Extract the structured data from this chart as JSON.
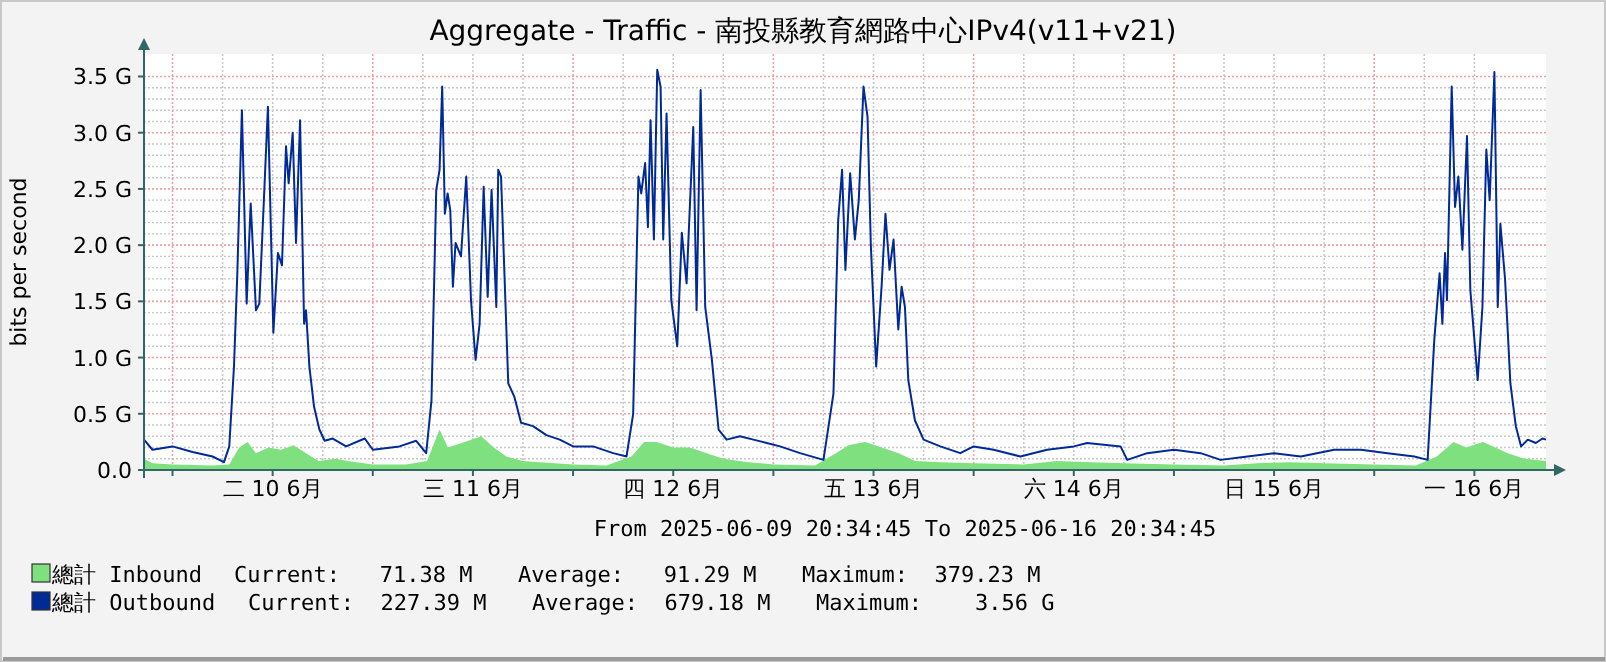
{
  "chart_data": {
    "type": "line",
    "title": "Aggregate - Traffic -  南投縣教育網路中心IPv4(v11+v21)",
    "ylabel": "bits per second",
    "xlim": [
      "2025-06-09T20:35",
      "2025-06-16T20:35"
    ],
    "ylim": [
      0,
      3.7
    ],
    "xticks": [
      {
        "value": "2025-06-10T00:00",
        "label": null
      },
      {
        "value": "2025-06-10T12:00",
        "label": "二 10 6月"
      },
      {
        "value": "2025-06-11T00:00",
        "label": null
      },
      {
        "value": "2025-06-11T12:00",
        "label": "三 11 6月"
      },
      {
        "value": "2025-06-12T00:00",
        "label": null
      },
      {
        "value": "2025-06-12T12:00",
        "label": "四 12 6月"
      },
      {
        "value": "2025-06-13T00:00",
        "label": null
      },
      {
        "value": "2025-06-13T12:00",
        "label": "五 13 6月"
      },
      {
        "value": "2025-06-14T00:00",
        "label": null
      },
      {
        "value": "2025-06-14T12:00",
        "label": "六 14 6月"
      },
      {
        "value": "2025-06-15T00:00",
        "label": null
      },
      {
        "value": "2025-06-15T12:00",
        "label": "日 15 6月"
      },
      {
        "value": "2025-06-16T00:00",
        "label": null
      },
      {
        "value": "2025-06-16T12:00",
        "label": "一 16 6月"
      }
    ],
    "yticks": [
      {
        "value": 0,
        "label": "0.0"
      },
      {
        "value": 0.5,
        "label": "0.5 G"
      },
      {
        "value": 1,
        "label": "1.0 G"
      },
      {
        "value": 1.5,
        "label": "1.5 G"
      },
      {
        "value": 2,
        "label": "2.0 G"
      },
      {
        "value": 2.5,
        "label": "2.5 G"
      },
      {
        "value": 3,
        "label": "3.0 G"
      },
      {
        "value": 3.5,
        "label": "3.5 G"
      }
    ],
    "grid": true,
    "legend": "bottom left",
    "annotations": [
      "From 2025-06-09 20:34:45 To 2025-06-16 20:34:45",
      "Current:   71.38 M",
      "Average:   91.29 M",
      "Maximum:  379.23 M",
      "Current:  227.39 M",
      "Average:  679.18 M",
      "Maximum:    3.56 G"
    ],
    "series": [
      {
        "name": "總計 Inbound",
        "type": "area",
        "color": "#7ee07e",
        "x": [
          "2025-06-09T20:35",
          "2025-06-09T21:36",
          "2025-06-10T00:00",
          "2025-06-10T04:48",
          "2025-06-10T06:48",
          "2025-06-10T08:00",
          "2025-06-10T09:00",
          "2025-06-10T10:00",
          "2025-06-10T11:30",
          "2025-06-10T13:00",
          "2025-06-10T14:30",
          "2025-06-10T16:00",
          "2025-06-10T17:30",
          "2025-06-10T19:30",
          "2025-06-10T21:00",
          "2025-06-11T00:00",
          "2025-06-11T04:00",
          "2025-06-11T06:30",
          "2025-06-11T08:00",
          "2025-06-11T09:00",
          "2025-06-11T11:00",
          "2025-06-11T13:00",
          "2025-06-11T14:30",
          "2025-06-11T16:00",
          "2025-06-11T18:00",
          "2025-06-11T20:00",
          "2025-06-12T00:00",
          "2025-06-12T04:00",
          "2025-06-12T07:00",
          "2025-06-12T08:30",
          "2025-06-12T10:00",
          "2025-06-12T12:00",
          "2025-06-12T14:00",
          "2025-06-12T16:00",
          "2025-06-12T18:00",
          "2025-06-12T21:00",
          "2025-06-13T00:00",
          "2025-06-13T05:00",
          "2025-06-13T07:30",
          "2025-06-13T09:00",
          "2025-06-13T11:00",
          "2025-06-13T13:00",
          "2025-06-13T15:00",
          "2025-06-13T17:00",
          "2025-06-13T20:00",
          "2025-06-14T00:00",
          "2025-06-14T06:00",
          "2025-06-14T10:00",
          "2025-06-14T14:00",
          "2025-06-14T18:00",
          "2025-06-15T00:00",
          "2025-06-15T06:00",
          "2025-06-15T10:00",
          "2025-06-15T14:00",
          "2025-06-15T18:00",
          "2025-06-16T00:00",
          "2025-06-16T05:00",
          "2025-06-16T07:30",
          "2025-06-16T09:30",
          "2025-06-16T11:00",
          "2025-06-16T13:00",
          "2025-06-16T14:30",
          "2025-06-16T16:00",
          "2025-06-16T18:00",
          "2025-06-16T20:35"
        ],
        "values": [
          0.1,
          0.06,
          0.05,
          0.04,
          0.05,
          0.2,
          0.25,
          0.15,
          0.2,
          0.18,
          0.22,
          0.15,
          0.08,
          0.1,
          0.08,
          0.05,
          0.05,
          0.08,
          0.36,
          0.2,
          0.25,
          0.3,
          0.2,
          0.12,
          0.08,
          0.07,
          0.05,
          0.04,
          0.12,
          0.25,
          0.25,
          0.2,
          0.2,
          0.15,
          0.1,
          0.07,
          0.05,
          0.04,
          0.15,
          0.22,
          0.25,
          0.2,
          0.15,
          0.08,
          0.07,
          0.06,
          0.05,
          0.08,
          0.07,
          0.06,
          0.05,
          0.04,
          0.06,
          0.07,
          0.06,
          0.05,
          0.04,
          0.12,
          0.25,
          0.2,
          0.25,
          0.2,
          0.15,
          0.1,
          0.08
        ]
      },
      {
        "name": "總計 Outbound",
        "type": "line",
        "color": "#002a97",
        "x": [
          "2025-06-09T20:35",
          "2025-06-09T21:36",
          "2025-06-10T00:00",
          "2025-06-10T02:24",
          "2025-06-10T04:48",
          "2025-06-10T06:10",
          "2025-06-10T06:48",
          "2025-06-10T07:22",
          "2025-06-10T07:46",
          "2025-06-10T08:19",
          "2025-06-10T08:53",
          "2025-06-10T09:22",
          "2025-06-10T10:00",
          "2025-06-10T10:24",
          "2025-06-10T10:58",
          "2025-06-10T11:26",
          "2025-06-10T12:05",
          "2025-06-10T12:38",
          "2025-06-10T13:07",
          "2025-06-10T13:36",
          "2025-06-10T13:55",
          "2025-06-10T14:24",
          "2025-06-10T14:48",
          "2025-06-10T15:17",
          "2025-06-10T15:46",
          "2025-06-10T16:00",
          "2025-06-10T16:24",
          "2025-06-10T16:58",
          "2025-06-10T17:36",
          "2025-06-10T18:14",
          "2025-06-10T19:12",
          "2025-06-10T20:48",
          "2025-06-10T23:02",
          "2025-06-11T00:00",
          "2025-06-11T03:12",
          "2025-06-11T05:12",
          "2025-06-11T06:24",
          "2025-06-11T07:02",
          "2025-06-11T07:36",
          "2025-06-11T08:00",
          "2025-06-11T08:19",
          "2025-06-11T08:38",
          "2025-06-11T08:58",
          "2025-06-11T09:17",
          "2025-06-11T09:36",
          "2025-06-11T09:55",
          "2025-06-11T10:34",
          "2025-06-11T11:12",
          "2025-06-11T11:46",
          "2025-06-11T12:19",
          "2025-06-11T12:48",
          "2025-06-11T13:17",
          "2025-06-11T13:46",
          "2025-06-11T14:14",
          "2025-06-11T14:48",
          "2025-06-11T15:02",
          "2025-06-11T15:22",
          "2025-06-11T16:14",
          "2025-06-11T16:58",
          "2025-06-11T17:46",
          "2025-06-11T19:12",
          "2025-06-11T20:48",
          "2025-06-11T22:24",
          "2025-06-12T00:00",
          "2025-06-12T02:24",
          "2025-06-12T04:48",
          "2025-06-12T06:24",
          "2025-06-12T07:12",
          "2025-06-12T07:50",
          "2025-06-12T08:10",
          "2025-06-12T08:38",
          "2025-06-12T08:58",
          "2025-06-12T09:17",
          "2025-06-12T09:41",
          "2025-06-12T10:05",
          "2025-06-12T10:29",
          "2025-06-12T10:48",
          "2025-06-12T11:12",
          "2025-06-12T11:46",
          "2025-06-12T12:29",
          "2025-06-12T13:02",
          "2025-06-12T13:36",
          "2025-06-12T14:24",
          "2025-06-12T14:48",
          "2025-06-12T15:17",
          "2025-06-12T15:50",
          "2025-06-12T16:38",
          "2025-06-12T17:26",
          "2025-06-12T18:24",
          "2025-06-12T20:00",
          "2025-06-12T21:36",
          "2025-06-12T23:12",
          "2025-06-13T00:48",
          "2025-06-13T03:12",
          "2025-06-13T06:00",
          "2025-06-13T07:12",
          "2025-06-13T07:46",
          "2025-06-13T08:14",
          "2025-06-13T08:38",
          "2025-06-13T09:12",
          "2025-06-13T09:46",
          "2025-06-13T10:14",
          "2025-06-13T10:48",
          "2025-06-13T11:17",
          "2025-06-13T11:41",
          "2025-06-13T12:19",
          "2025-06-13T12:58",
          "2025-06-13T13:26",
          "2025-06-13T13:55",
          "2025-06-13T14:24",
          "2025-06-13T14:58",
          "2025-06-13T15:22",
          "2025-06-13T15:46",
          "2025-06-13T16:10",
          "2025-06-13T16:58",
          "2025-06-13T18:00",
          "2025-06-13T20:00",
          "2025-06-13T22:24",
          "2025-06-14T00:00",
          "2025-06-14T02:24",
          "2025-06-14T05:36",
          "2025-06-14T08:48",
          "2025-06-14T12:00",
          "2025-06-14T13:36",
          "2025-06-14T17:36",
          "2025-06-14T18:24",
          "2025-06-14T20:48",
          "2025-06-15T00:00",
          "2025-06-15T03:12",
          "2025-06-15T05:36",
          "2025-06-15T08:48",
          "2025-06-15T12:00",
          "2025-06-15T15:12",
          "2025-06-15T19:12",
          "2025-06-15T22:24",
          "2025-06-16T01:36",
          "2025-06-16T04:48",
          "2025-06-16T06:24",
          "2025-06-16T07:12",
          "2025-06-16T07:50",
          "2025-06-16T08:10",
          "2025-06-16T08:29",
          "2025-06-16T08:43",
          "2025-06-16T09:17",
          "2025-06-16T09:41",
          "2025-06-16T10:05",
          "2025-06-16T10:34",
          "2025-06-16T11:07",
          "2025-06-16T11:31",
          "2025-06-16T12:24",
          "2025-06-16T12:58",
          "2025-06-16T13:26",
          "2025-06-16T13:50",
          "2025-06-16T14:24",
          "2025-06-16T14:48",
          "2025-06-16T15:07",
          "2025-06-16T15:41",
          "2025-06-16T16:19",
          "2025-06-16T16:58",
          "2025-06-16T17:36",
          "2025-06-16T18:24",
          "2025-06-16T19:22",
          "2025-06-16T20:10",
          "2025-06-16T20:35"
        ],
        "values": [
          0.27,
          0.18,
          0.21,
          0.16,
          0.12,
          0.07,
          0.21,
          0.92,
          1.75,
          3.2,
          1.48,
          2.37,
          1.42,
          1.48,
          2.43,
          3.23,
          1.22,
          1.93,
          1.82,
          2.88,
          2.55,
          3.0,
          2.02,
          3.11,
          1.3,
          1.42,
          0.92,
          0.56,
          0.36,
          0.26,
          0.28,
          0.21,
          0.28,
          0.18,
          0.21,
          0.26,
          0.15,
          0.62,
          2.49,
          2.67,
          3.41,
          2.28,
          2.46,
          2.31,
          1.63,
          2.02,
          1.9,
          2.61,
          1.51,
          0.98,
          1.3,
          2.52,
          1.54,
          2.49,
          1.45,
          2.67,
          2.61,
          0.77,
          0.65,
          0.42,
          0.39,
          0.31,
          0.27,
          0.21,
          0.21,
          0.15,
          0.12,
          0.5,
          2.61,
          2.46,
          2.73,
          2.16,
          3.11,
          2.05,
          3.56,
          3.41,
          2.05,
          3.17,
          1.51,
          1.1,
          2.11,
          1.66,
          3.05,
          1.42,
          3.38,
          1.45,
          0.98,
          0.36,
          0.27,
          0.3,
          0.27,
          0.24,
          0.21,
          0.15,
          0.09,
          0.68,
          2.22,
          2.67,
          1.78,
          2.64,
          2.05,
          2.4,
          3.41,
          3.14,
          1.99,
          0.92,
          1.63,
          2.28,
          1.78,
          2.05,
          1.25,
          1.63,
          1.45,
          0.8,
          0.44,
          0.27,
          0.21,
          0.15,
          0.21,
          0.18,
          0.12,
          0.18,
          0.21,
          0.24,
          0.21,
          0.09,
          0.15,
          0.18,
          0.15,
          0.09,
          0.12,
          0.15,
          0.12,
          0.18,
          0.18,
          0.15,
          0.12,
          0.09,
          1.16,
          1.75,
          1.3,
          1.93,
          1.51,
          3.41,
          2.34,
          2.61,
          1.96,
          2.97,
          1.6,
          0.8,
          1.45,
          2.85,
          2.4,
          3.54,
          1.45,
          2.19,
          1.69,
          0.77,
          0.39,
          0.21,
          0.27,
          0.24,
          0.28,
          0.27
        ]
      }
    ]
  }
}
